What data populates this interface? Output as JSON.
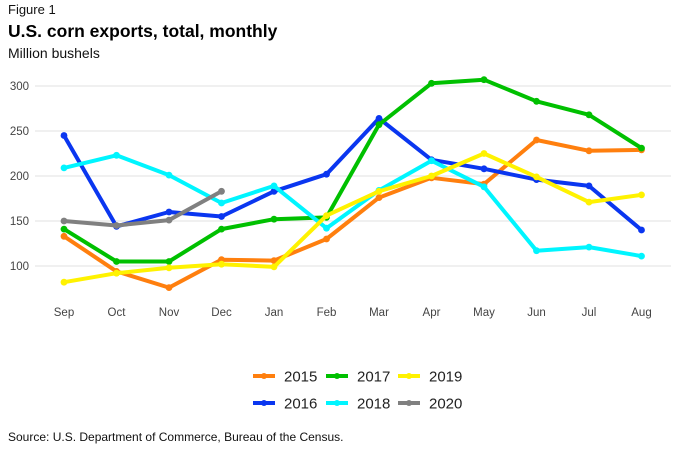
{
  "figure_label": "Figure 1",
  "source": "Source: U.S. Department of Commerce, Bureau of the Census.",
  "chart_data": {
    "type": "line",
    "title": "U.S. corn exports, total, monthly",
    "subtitle": "Million bushels",
    "xlabel": "",
    "ylabel": "Million bushels",
    "categories": [
      "Sep",
      "Oct",
      "Nov",
      "Dec",
      "Jan",
      "Feb",
      "Mar",
      "Apr",
      "May",
      "Jun",
      "Jul",
      "Aug"
    ],
    "yticks": [
      100,
      150,
      200,
      250,
      300
    ],
    "ylim": [
      60,
      310
    ],
    "grid": "horizontal",
    "legend_position": "bottom-center",
    "series": [
      {
        "name": "2015",
        "color": "#FF7F0E",
        "values": [
          133,
          94,
          76,
          107,
          106,
          130,
          176,
          198,
          191,
          240,
          228,
          229
        ]
      },
      {
        "name": "2016",
        "color": "#0A36F0",
        "values": [
          245,
          144,
          160,
          155,
          183,
          202,
          264,
          218,
          208,
          196,
          189,
          140
        ]
      },
      {
        "name": "2017",
        "color": "#00C000",
        "values": [
          141,
          105,
          105,
          141,
          152,
          154,
          257,
          303,
          307,
          283,
          268,
          231
        ]
      },
      {
        "name": "2018",
        "color": "#00F5FF",
        "values": [
          209,
          223,
          201,
          170,
          189,
          142,
          184,
          217,
          188,
          117,
          121,
          111
        ]
      },
      {
        "name": "2019",
        "color": "#FFF200",
        "values": [
          82,
          92,
          98,
          102,
          99,
          156,
          183,
          200,
          225,
          199,
          171,
          179
        ]
      },
      {
        "name": "2020",
        "color": "#808080",
        "values": [
          150,
          145,
          151,
          183
        ]
      }
    ]
  }
}
